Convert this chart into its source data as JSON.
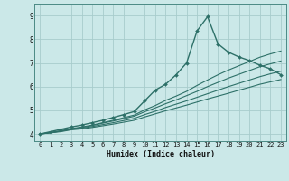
{
  "xlabel": "Humidex (Indice chaleur)",
  "bg_color": "#cbe8e8",
  "grid_color": "#a8cccc",
  "line_color": "#2d7068",
  "xlim": [
    -0.5,
    23.5
  ],
  "ylim": [
    3.7,
    9.5
  ],
  "xticks": [
    0,
    1,
    2,
    3,
    4,
    5,
    6,
    7,
    8,
    9,
    10,
    11,
    12,
    13,
    14,
    15,
    16,
    17,
    18,
    19,
    20,
    21,
    22,
    23
  ],
  "yticks": [
    4,
    5,
    6,
    7,
    8,
    9
  ],
  "lines": [
    {
      "x": [
        0,
        1,
        2,
        3,
        4,
        5,
        6,
        7,
        8,
        9,
        10,
        11,
        12,
        13,
        14,
        15,
        16,
        17,
        18,
        19,
        20,
        21,
        22,
        23
      ],
      "y": [
        4.0,
        4.05,
        4.1,
        4.18,
        4.22,
        4.28,
        4.35,
        4.42,
        4.5,
        4.58,
        4.72,
        4.85,
        4.98,
        5.1,
        5.22,
        5.35,
        5.48,
        5.6,
        5.72,
        5.85,
        5.97,
        6.1,
        6.2,
        6.3
      ],
      "marker": false,
      "linewidth": 0.8
    },
    {
      "x": [
        0,
        1,
        2,
        3,
        4,
        5,
        6,
        7,
        8,
        9,
        10,
        11,
        12,
        13,
        14,
        15,
        16,
        17,
        18,
        19,
        20,
        21,
        22,
        23
      ],
      "y": [
        4.0,
        4.05,
        4.12,
        4.2,
        4.25,
        4.32,
        4.4,
        4.48,
        4.57,
        4.66,
        4.82,
        4.96,
        5.12,
        5.26,
        5.4,
        5.55,
        5.7,
        5.85,
        6.0,
        6.14,
        6.28,
        6.42,
        6.54,
        6.65
      ],
      "marker": false,
      "linewidth": 0.8
    },
    {
      "x": [
        0,
        1,
        2,
        3,
        4,
        5,
        6,
        7,
        8,
        9,
        10,
        11,
        12,
        13,
        14,
        15,
        16,
        17,
        18,
        19,
        20,
        21,
        22,
        23
      ],
      "y": [
        4.0,
        4.06,
        4.13,
        4.22,
        4.28,
        4.36,
        4.46,
        4.55,
        4.65,
        4.75,
        4.94,
        5.1,
        5.28,
        5.44,
        5.62,
        5.8,
        6.0,
        6.18,
        6.36,
        6.52,
        6.68,
        6.84,
        6.96,
        7.08
      ],
      "marker": false,
      "linewidth": 0.8
    },
    {
      "x": [
        0,
        1,
        2,
        3,
        4,
        5,
        6,
        7,
        8,
        9,
        10,
        11,
        12,
        13,
        14,
        15,
        16,
        17,
        18,
        19,
        20,
        21,
        22,
        23
      ],
      "y": [
        4.0,
        4.07,
        4.14,
        4.23,
        4.3,
        4.38,
        4.48,
        4.58,
        4.69,
        4.8,
        5.02,
        5.2,
        5.42,
        5.6,
        5.8,
        6.05,
        6.28,
        6.5,
        6.7,
        6.88,
        7.06,
        7.24,
        7.38,
        7.5
      ],
      "marker": false,
      "linewidth": 0.8
    },
    {
      "x": [
        0,
        1,
        2,
        3,
        4,
        5,
        6,
        7,
        8,
        9,
        10,
        11,
        12,
        13,
        14,
        15,
        16,
        17,
        18,
        19,
        20,
        21,
        22,
        23
      ],
      "y": [
        4.0,
        4.1,
        4.2,
        4.3,
        4.38,
        4.48,
        4.58,
        4.7,
        4.82,
        4.95,
        5.4,
        5.85,
        6.1,
        6.5,
        7.0,
        8.35,
        8.95,
        7.8,
        7.45,
        7.25,
        7.1,
        6.9,
        6.75,
        6.5
      ],
      "marker": true,
      "linewidth": 1.0
    }
  ]
}
